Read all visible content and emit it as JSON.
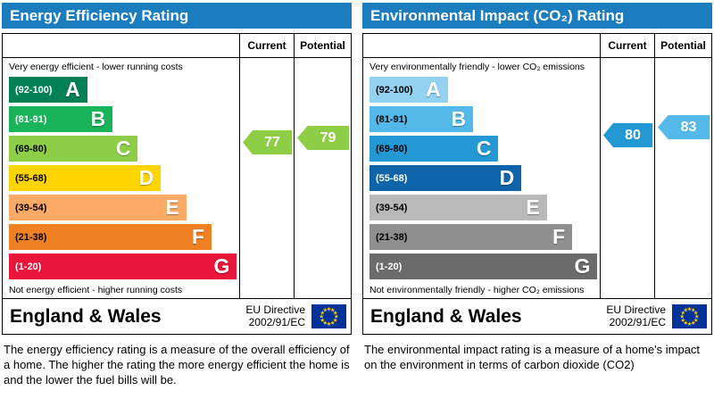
{
  "chart_data": [
    {
      "type": "bar",
      "title": "Energy Efficiency Rating",
      "categories": [
        "A (92-100)",
        "B (81-91)",
        "C (69-80)",
        "D (55-68)",
        "E (39-54)",
        "F (21-38)",
        "G (1-20)"
      ],
      "series": [
        {
          "name": "Current",
          "values": [
            77
          ]
        },
        {
          "name": "Potential",
          "values": [
            79
          ]
        }
      ],
      "ylim": [
        1,
        100
      ],
      "legend_position": "top-right-columns"
    },
    {
      "type": "bar",
      "title": "Environmental Impact (CO₂) Rating",
      "categories": [
        "A (92-100)",
        "B (81-91)",
        "C (69-80)",
        "D (55-68)",
        "E (39-54)",
        "F (21-38)",
        "G (1-20)"
      ],
      "series": [
        {
          "name": "Current",
          "values": [
            80
          ]
        },
        {
          "name": "Potential",
          "values": [
            83
          ]
        }
      ],
      "ylim": [
        1,
        100
      ],
      "legend_position": "top-right-columns"
    }
  ],
  "panels": [
    {
      "title": "Energy Efficiency Rating",
      "header_color": "#1b7cbe",
      "columns": {
        "current": "Current",
        "potential": "Potential"
      },
      "top_caption": "Very energy efficient - lower running costs",
      "bottom_caption": "Not energy efficient - higher running costs",
      "bands": [
        {
          "letter": "A",
          "range": "(92-100)",
          "lo": 92,
          "hi": 100,
          "color": "#008054",
          "text_color": "#ffffff",
          "width": "34%"
        },
        {
          "letter": "B",
          "range": "(81-91)",
          "lo": 81,
          "hi": 91,
          "color": "#19b459",
          "text_color": "#ffffff",
          "width": "45%"
        },
        {
          "letter": "C",
          "range": "(69-80)",
          "lo": 69,
          "hi": 80,
          "color": "#8dce46",
          "text_color": "#000000",
          "width": "56%"
        },
        {
          "letter": "D",
          "range": "(55-68)",
          "lo": 55,
          "hi": 68,
          "color": "#ffd500",
          "text_color": "#000000",
          "width": "66%"
        },
        {
          "letter": "E",
          "range": "(39-54)",
          "lo": 39,
          "hi": 54,
          "color": "#fcaa65",
          "text_color": "#000000",
          "width": "77%"
        },
        {
          "letter": "F",
          "range": "(21-38)",
          "lo": 21,
          "hi": 38,
          "color": "#ef8023",
          "text_color": "#000000",
          "width": "88%"
        },
        {
          "letter": "G",
          "range": "(1-20)",
          "lo": 1,
          "hi": 20,
          "color": "#e9153b",
          "text_color": "#ffffff",
          "width": "99%"
        }
      ],
      "current": {
        "value": 77
      },
      "potential": {
        "value": 79
      },
      "footer": {
        "region": "England & Wales",
        "directive": [
          "EU Directive",
          "2002/91/EC"
        ],
        "flag_colors": {
          "field": "#003399",
          "stars": "#ffcc00"
        }
      },
      "description": "The energy efficiency rating is a measure of the overall efficiency of a home.  The higher the rating the more energy efficient the home is and the lower the fuel bills will be."
    },
    {
      "title": "Environmental Impact (CO₂) Rating",
      "header_color": "#1b7cbe",
      "columns": {
        "current": "Current",
        "potential": "Potential"
      },
      "top_caption": "Very environmentally friendly - lower CO₂ emissions",
      "bottom_caption": "Not environmentally friendly - higher CO₂ emissions",
      "bands": [
        {
          "letter": "A",
          "range": "(92-100)",
          "lo": 92,
          "hi": 100,
          "color": "#92d1f0",
          "text_color": "#000000",
          "width": "34%"
        },
        {
          "letter": "B",
          "range": "(81-91)",
          "lo": 81,
          "hi": 91,
          "color": "#54b9e9",
          "text_color": "#000000",
          "width": "45%"
        },
        {
          "letter": "C",
          "range": "(69-80)",
          "lo": 69,
          "hi": 80,
          "color": "#2498d2",
          "text_color": "#000000",
          "width": "56%"
        },
        {
          "letter": "D",
          "range": "(55-68)",
          "lo": 55,
          "hi": 68,
          "color": "#0d64a9",
          "text_color": "#ffffff",
          "width": "66%"
        },
        {
          "letter": "E",
          "range": "(39-54)",
          "lo": 39,
          "hi": 54,
          "color": "#b9b9b9",
          "text_color": "#000000",
          "width": "77%"
        },
        {
          "letter": "F",
          "range": "(21-38)",
          "lo": 21,
          "hi": 38,
          "color": "#8f8f8f",
          "text_color": "#000000",
          "width": "88%"
        },
        {
          "letter": "G",
          "range": "(1-20)",
          "lo": 1,
          "hi": 20,
          "color": "#6b6b6b",
          "text_color": "#ffffff",
          "width": "99%"
        }
      ],
      "current": {
        "value": 80
      },
      "potential": {
        "value": 83
      },
      "footer": {
        "region": "England & Wales",
        "directive": [
          "EU Directive",
          "2002/91/EC"
        ],
        "flag_colors": {
          "field": "#003399",
          "stars": "#ffcc00"
        }
      },
      "description": "The environmental impact rating is a measure of a home's impact on the environment in terms of carbon dioxide (CO2)"
    }
  ]
}
